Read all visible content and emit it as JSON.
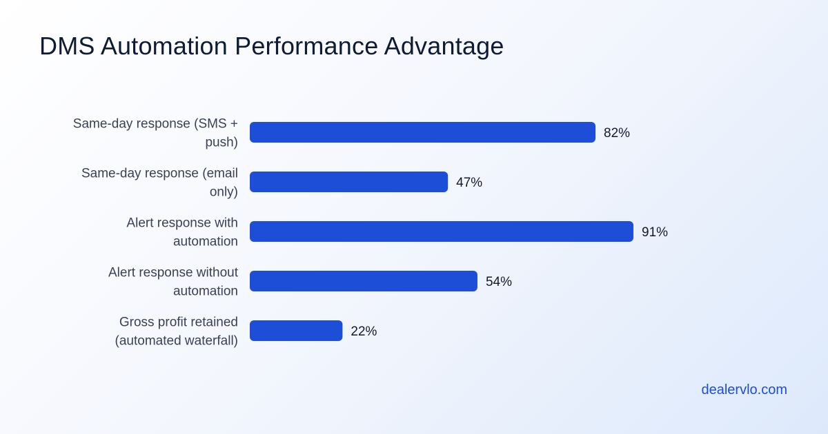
{
  "page": {
    "watermark": "dealervlo.com",
    "accent_color": "#1d4ed8"
  },
  "chart_data": {
    "type": "bar",
    "orientation": "horizontal",
    "title": "DMS Automation  Performance  Advantage",
    "categories": [
      [
        "Same-day response (SMS +",
        "push)"
      ],
      [
        "Same-day response (email",
        "only)"
      ],
      [
        "Alert response with",
        "automation"
      ],
      [
        "Alert response without",
        "automation"
      ],
      [
        "Gross profit  retained",
        "(automated  waterfall)"
      ]
    ],
    "values": [
      82,
      47,
      91,
      54,
      22
    ],
    "value_labels": [
      "82%",
      "47%",
      "91%",
      "54%",
      "22%"
    ],
    "unit": "%",
    "xlim": [
      0,
      100
    ],
    "grid": false,
    "legend": "none"
  }
}
